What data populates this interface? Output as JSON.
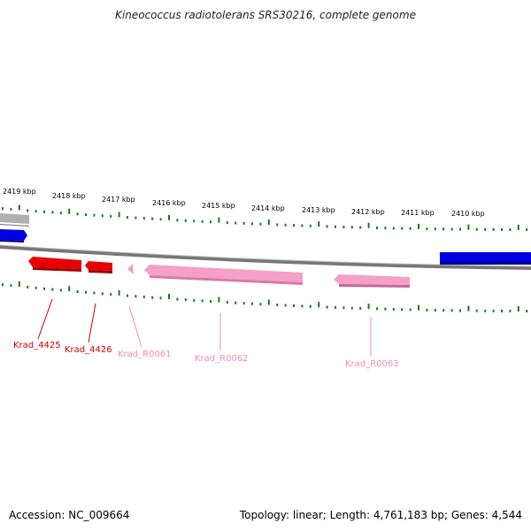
{
  "title": "Kineococcus radiotolerans SRS30216, complete genome",
  "footer": {
    "accession": "Accession: NC_009664",
    "summary": "Topology: linear; Length: 4,761,183 bp; Genes: 4,544"
  },
  "scale": {
    "unit": "kbp",
    "labels": [
      "2419 kbp",
      "2418 kbp",
      "2417 kbp",
      "2416 kbp",
      "2415 kbp",
      "2414 kbp",
      "2413 kbp",
      "2412 kbp",
      "2411 kbp",
      "2410 kbp"
    ]
  },
  "colors": {
    "ticks": "#1a7a1a",
    "backbone": "#777777",
    "gene_red": "#e60000",
    "gene_pink": "#f5a0c8",
    "gene_blue": "#0000e0",
    "gene_gray": "#aaaaaa",
    "label_red": "#d00000",
    "label_pink": "#f08cbc"
  },
  "genes": [
    {
      "name": "Krad_4425",
      "color": "red"
    },
    {
      "name": "Krad_4426",
      "color": "red"
    },
    {
      "name": "Krad_R0061",
      "color": "pink"
    },
    {
      "name": "Krad_R0062",
      "color": "pink"
    },
    {
      "name": "Krad_R0063",
      "color": "pink"
    }
  ]
}
